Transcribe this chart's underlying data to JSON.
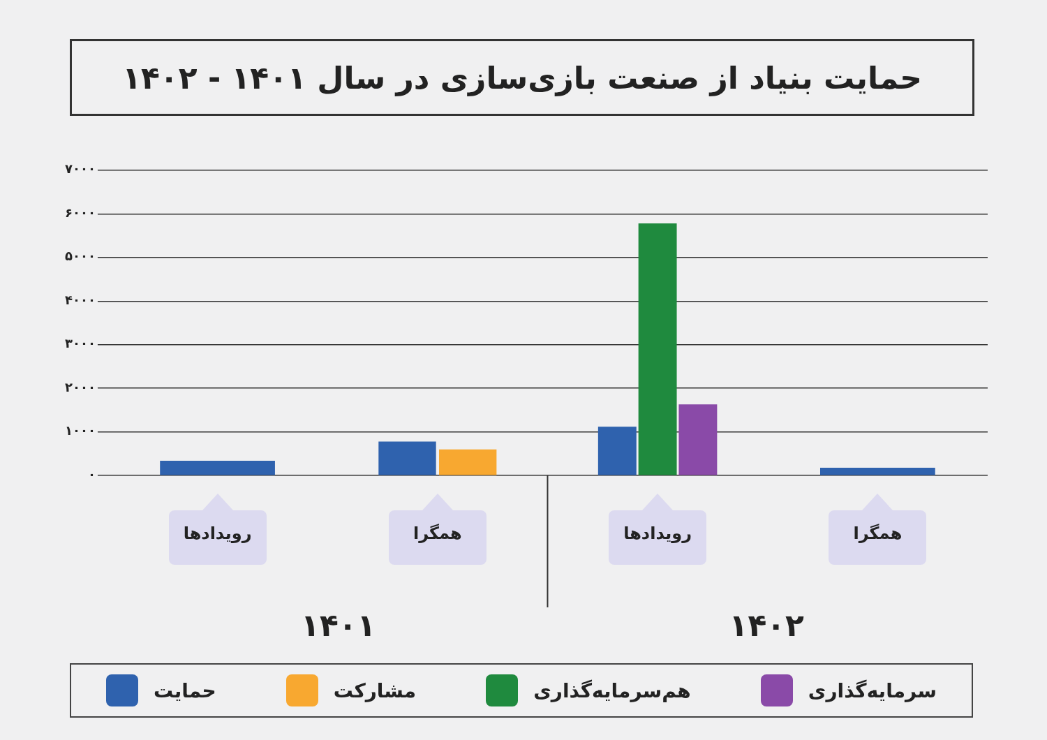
{
  "chart_data": {
    "type": "bar",
    "title": "حمایت بنیاد از صنعت بازی‌سازی در سال ۱۴۰۱ - ۱۴۰۲",
    "categories": [
      "رویدادها",
      "همگرا",
      "رویدادها",
      "همگرا"
    ],
    "series": [
      {
        "name": "حمایت",
        "color": "#2f62ae",
        "values": [
          340,
          780,
          1120,
          180
        ]
      },
      {
        "name": "مشارکت",
        "color": "#f8a830",
        "values": [
          null,
          600,
          null,
          null
        ]
      },
      {
        "name": "هم‌سرمایه‌گذاری",
        "color": "#1f8a3e",
        "values": [
          null,
          null,
          5780,
          null
        ]
      },
      {
        "name": "سرمایه‌گذاری",
        "color": "#8a4aa8",
        "values": [
          null,
          null,
          1630,
          null
        ]
      }
    ],
    "annotations": [
      "۱۴۰۱",
      "۱۴۰۲"
    ],
    "ylim": [
      0,
      7000
    ],
    "yticks": [
      {
        "value": 0,
        "label": "۰"
      },
      {
        "value": 1000,
        "label": "۱۰۰۰"
      },
      {
        "value": 2000,
        "label": "۲۰۰۰"
      },
      {
        "value": 3000,
        "label": "۳۰۰۰"
      },
      {
        "value": 4000,
        "label": "۴۰۰۰"
      },
      {
        "value": 5000,
        "label": "۵۰۰۰"
      },
      {
        "value": 6000,
        "label": "۶۰۰۰"
      },
      {
        "value": 7000,
        "label": "۷۰۰۰"
      }
    ],
    "grid": "y",
    "legend": "bottom"
  }
}
